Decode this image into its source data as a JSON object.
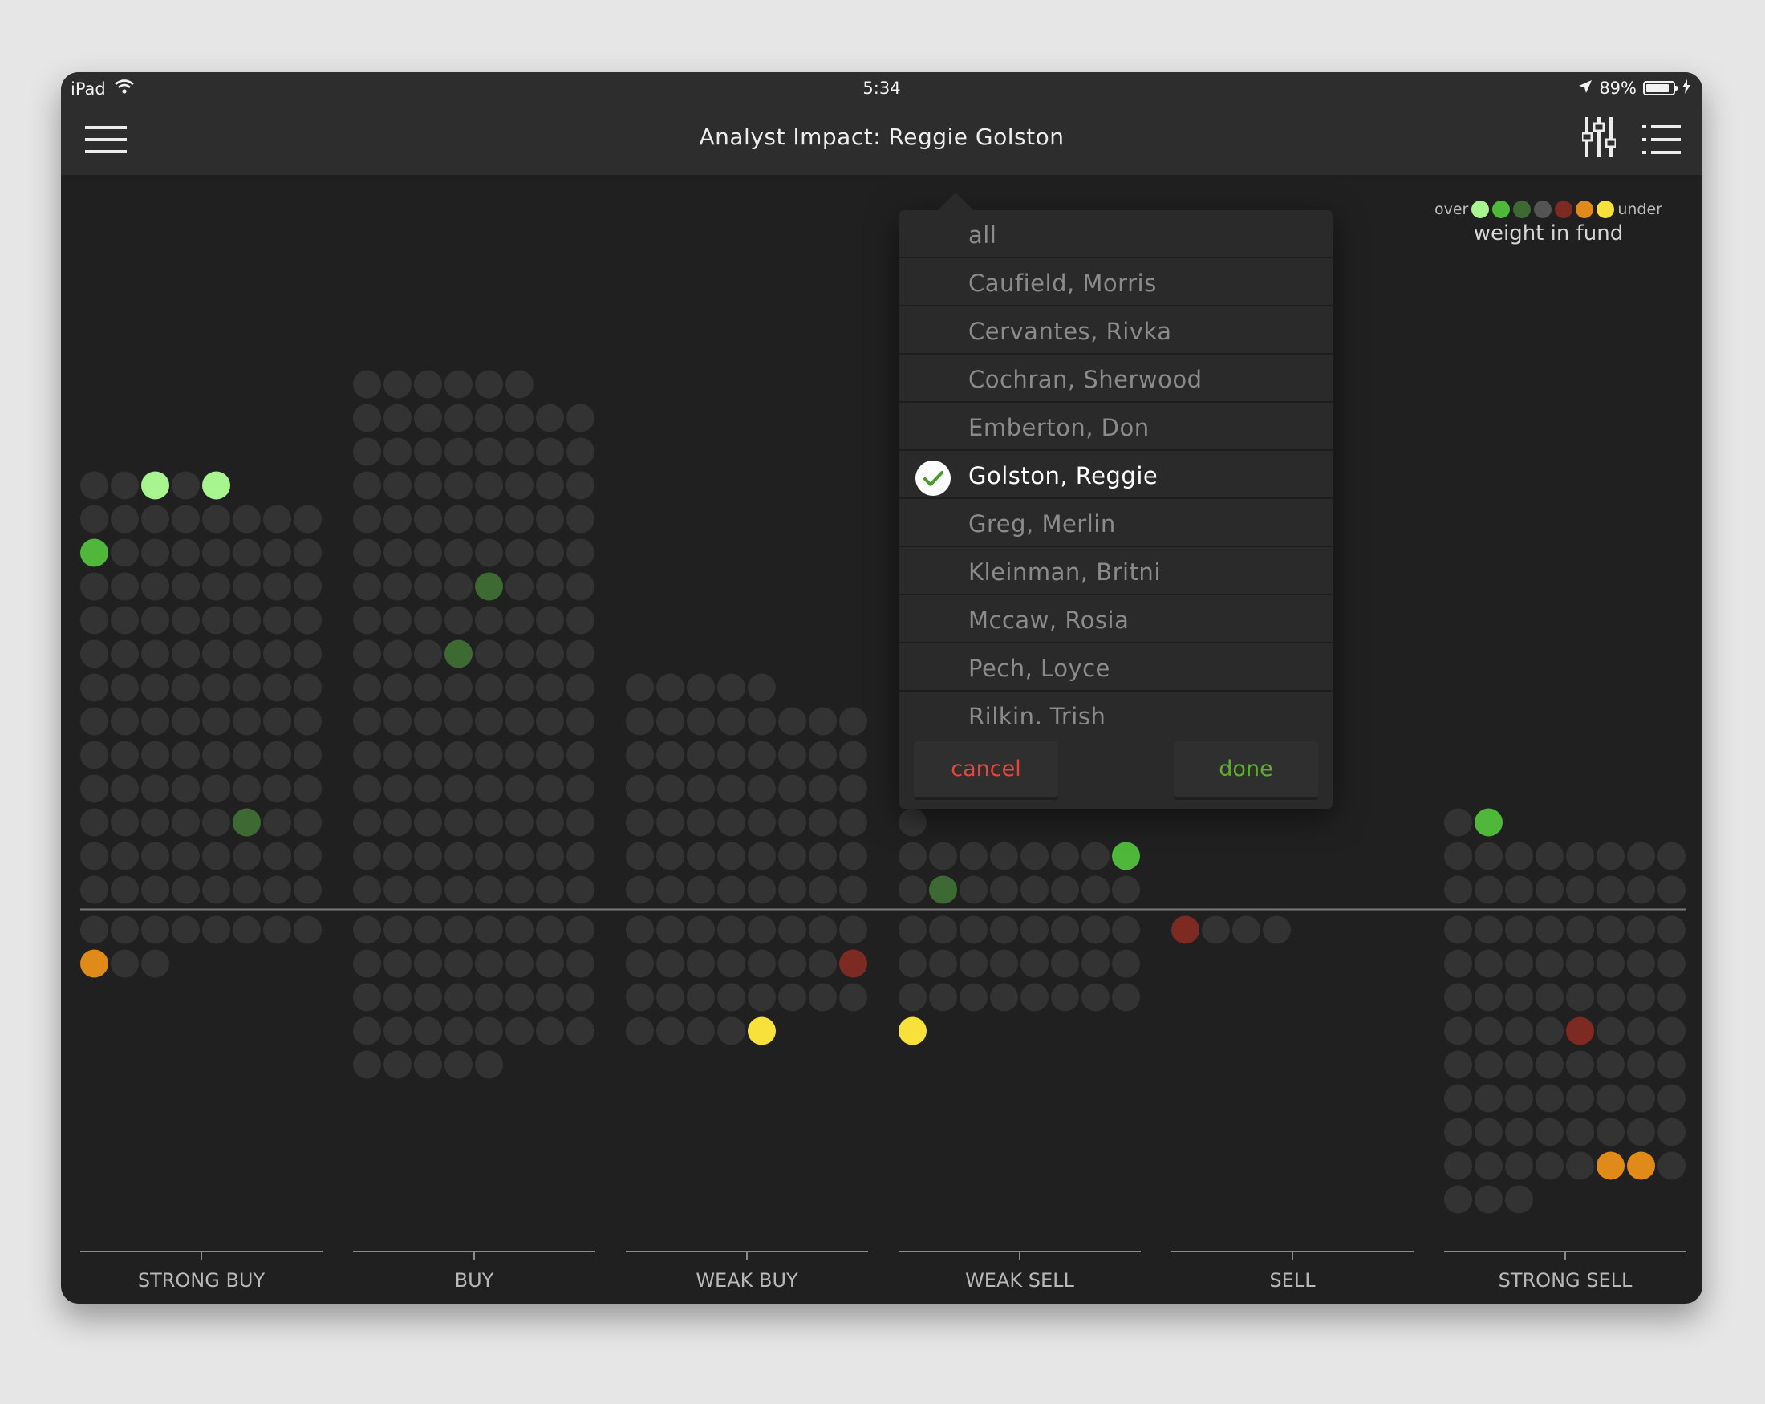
{
  "status_bar": {
    "device": "iPad",
    "time": "5:34",
    "battery": "89%",
    "battery_level": 0.89
  },
  "nav": {
    "title": "Analyst Impact: Reggie Golston",
    "menu_icon": "hamburger-icon",
    "filter_icon": "sliders-icon",
    "list_icon": "list-icon"
  },
  "legend": {
    "over_label": "over",
    "under_label": "under",
    "caption": "weight in fund",
    "colors": [
      "#a8f58f",
      "#4fb83b",
      "#3d6a33",
      "#545454",
      "#7d2a22",
      "#e08a1a",
      "#f7e13a"
    ]
  },
  "analyst_picker": {
    "items": [
      "all",
      "Caufield, Morris",
      "Cervantes, Rivka",
      "Cochran, Sherwood",
      "Emberton, Don",
      "Golston, Reggie",
      "Greg, Merlin",
      "Kleinman, Britni",
      "Mccaw, Rosia",
      "Pech, Loyce",
      "Rilkin, Trish"
    ],
    "selected": "Golston, Reggie",
    "cancel_label": "cancel",
    "done_label": "done"
  },
  "chart_data": {
    "type": "dot-matrix",
    "color_key": {
      "L": "#a8f58f",
      "G": "#4fb83b",
      "D": "#3d6a33",
      "R": "#7d2a22",
      "O": "#e08a1a",
      "Y": "#f7e13a",
      "N": "#333333"
    },
    "categories": [
      {
        "label": "STRONG BUY",
        "above": [
          "NNLNL",
          "NNNNNNNN",
          "GNNNNNNN",
          "NNNNNNNN",
          "NNNNNNNN",
          "NNNNNNNN",
          "NNNNNNNN",
          "NNNNNNNN",
          "NNNNNNNN",
          "NNNNNNNN",
          "NNNNNDNN",
          "NNNNNNNN",
          "NNNNNNNN"
        ],
        "below": [
          "NNNNNNNN",
          "ONN"
        ]
      },
      {
        "label": "BUY",
        "above": [
          "NNNNNN",
          "NNNNNNNN",
          "NNNNNNNN",
          "NNNNNNNN",
          "NNNNNNNN",
          "NNNNNNNN",
          "NNNNDNNN",
          "NNNNNNNN",
          "NNNDNNNN",
          "NNNNNNNN",
          "NNNNNNNN",
          "NNNNNNNN",
          "NNNNNNNN",
          "NNNNNNNN",
          "NNNNNNNN",
          "NNNNNNNN"
        ],
        "below": [
          "NNNNNNNN",
          "NNNNNNNN",
          "NNNNNNNN",
          "NNNNNNNN",
          "NNNNN"
        ]
      },
      {
        "label": "WEAK BUY",
        "above": [
          "NNNNN",
          "NNNNNNNN",
          "NNNNNNNN",
          "NNNNNNNN",
          "NNNNNNNN",
          "NNNNNNNN",
          "NNNNNNNN"
        ],
        "below": [
          "NNNNNNNN",
          "NNNNNNNR",
          "NNNNNNNN",
          "NNNNY"
        ]
      },
      {
        "label": "WEAK SELL",
        "above": [
          "N",
          "NNNNNNNG",
          "NDNNNNNN"
        ],
        "below": [
          "NNNNNNNN",
          "NNNNNNNN",
          "NNNNNNNN",
          "Y"
        ]
      },
      {
        "label": "SELL",
        "above": [],
        "below": [
          "RNNN"
        ]
      },
      {
        "label": "STRONG SELL",
        "above": [
          "NG",
          "NNNNNNNN",
          "NNNNNNNN"
        ],
        "below": [
          "NNNNNNNN",
          "NNNNNNNN",
          "NNNNNNNN",
          "NNNNRNNN",
          "NNNNNNNN",
          "NNNNNNNN",
          "NNNNNNNN",
          "NNNNNOON",
          "NNN"
        ]
      }
    ]
  }
}
